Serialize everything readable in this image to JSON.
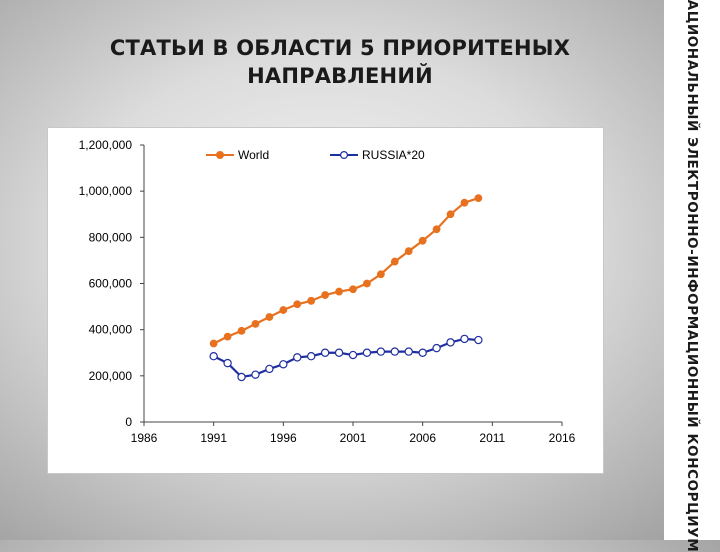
{
  "slide": {
    "title_line1": "СТАТЬИ В ОБЛАСТИ 5 ПРИОРИТЕНЫХ",
    "title_line2": "НАПРАВЛЕНИЙ",
    "side_caption": "НАЦИОНАЛЬНЫЙ ЭЛЕКТРОННО-ИНФОРМАЦИОННЫЙ КОНСОРЦИУМ"
  },
  "chart_data": {
    "type": "line",
    "title": "",
    "xlabel": "",
    "ylabel": "",
    "xlim": [
      1986,
      2016
    ],
    "ylim": [
      0,
      1200000
    ],
    "x_ticks": [
      1986,
      1991,
      1996,
      2001,
      2006,
      2011,
      2016
    ],
    "y_ticks": [
      0,
      200000,
      400000,
      600000,
      800000,
      1000000,
      1200000
    ],
    "y_tick_labels": [
      "0",
      "200,000",
      "400,000",
      "600,000",
      "800,000",
      "1,000,000",
      "1,200,000"
    ],
    "legend_position": "top",
    "grid": false,
    "series": [
      {
        "name": "World",
        "color": "#E8711F",
        "marker": "filled-circle",
        "x": [
          1991,
          1992,
          1993,
          1994,
          1995,
          1996,
          1997,
          1998,
          1999,
          2000,
          2001,
          2002,
          2003,
          2004,
          2005,
          2006,
          2007,
          2008,
          2009,
          2010
        ],
        "y": [
          340000,
          370000,
          395000,
          425000,
          455000,
          485000,
          510000,
          525000,
          550000,
          565000,
          575000,
          600000,
          640000,
          695000,
          740000,
          785000,
          835000,
          900000,
          950000,
          970000
        ]
      },
      {
        "name": "RUSSIA*20",
        "color": "#1F2FA0",
        "marker": "open-circle",
        "x": [
          1991,
          1992,
          1993,
          1994,
          1995,
          1996,
          1997,
          1998,
          1999,
          2000,
          2001,
          2002,
          2003,
          2004,
          2005,
          2006,
          2007,
          2008,
          2009,
          2010
        ],
        "y": [
          285000,
          255000,
          195000,
          205000,
          230000,
          250000,
          280000,
          285000,
          300000,
          300000,
          290000,
          300000,
          305000,
          305000,
          305000,
          300000,
          320000,
          345000,
          360000,
          355000
        ]
      }
    ]
  }
}
